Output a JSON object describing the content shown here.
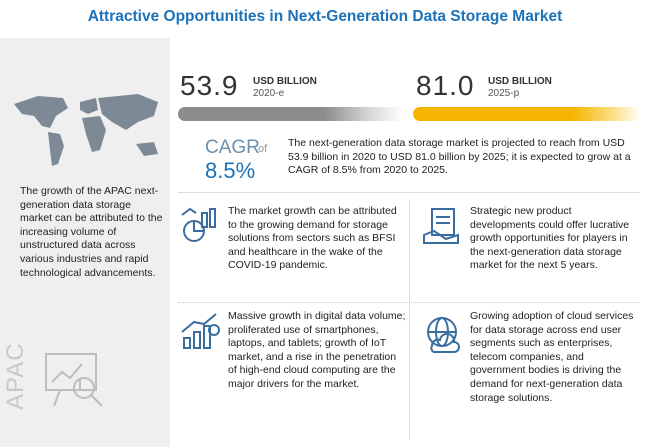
{
  "header": {
    "title": "Attractive Opportunities in Next-Generation Data Storage Market"
  },
  "side_panel": {
    "text": "The growth of the APAC next-generation data storage market can be attributed to the increasing volume of unstructured data across various industries and rapid technological advancements.",
    "region": "APAC"
  },
  "stats": [
    {
      "value": "53.9",
      "unit": "USD BILLION",
      "year": "2020-e"
    },
    {
      "value": "81.0",
      "unit": "USD BILLION",
      "year": "2025-p"
    }
  ],
  "cagr": {
    "label": "CAGR",
    "connector": "of",
    "value": "8.5%"
  },
  "summary": "The next-generation data storage market is projected to reach from USD 53.9 billion in 2020 to USD 81.0 billion by 2025; it is expected to grow at a CAGR of 8.5% from 2020 to 2025.",
  "cards": [
    {
      "text": "The market growth can be attributed to the growing demand for storage solutions from sectors such as BFSI and healthcare in the wake of the COVID-19 pandemic."
    },
    {
      "text": "Strategic new product developments could offer lucrative growth opportunities for players in the next-generation data storage market for the next 5 years."
    },
    {
      "text": "Massive growth in digital data volume; proliferated use of smartphones, laptops, and tablets; growth of IoT market, and a rise in the penetration of high-end cloud computing are the major drivers for the market."
    },
    {
      "text": "Growing adoption of cloud services for data storage across end user segments such as enterprises, telecom companies, and government bodies is driving the demand for next-generation data storage solutions."
    }
  ]
}
